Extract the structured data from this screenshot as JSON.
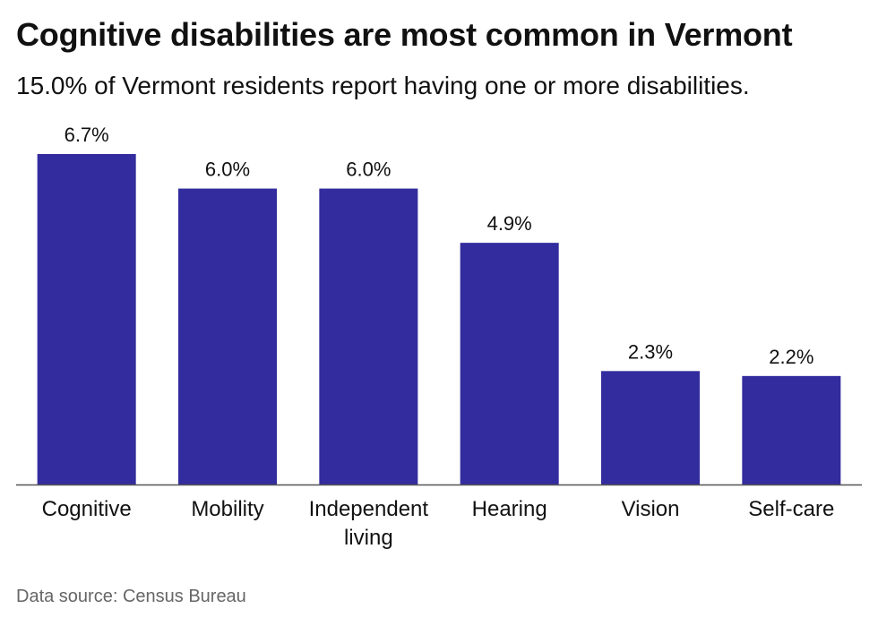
{
  "header": {
    "title": "Cognitive disabilities are most common in Vermont",
    "subtitle": "15.0% of Vermont residents report having one or more disabilities."
  },
  "footer": {
    "source": "Data source: Census Bureau"
  },
  "colors": {
    "bar": "#332c9e",
    "axis": "#555555",
    "text": "#111111"
  },
  "chart_data": {
    "type": "bar",
    "categories": [
      "Cognitive",
      "Mobility",
      "Independent living",
      "Hearing",
      "Vision",
      "Self-care"
    ],
    "category_lines": [
      [
        "Cognitive"
      ],
      [
        "Mobility"
      ],
      [
        "Independent",
        "living"
      ],
      [
        "Hearing"
      ],
      [
        "Vision"
      ],
      [
        "Self-care"
      ]
    ],
    "values": [
      6.7,
      6.0,
      6.0,
      4.9,
      2.3,
      2.2
    ],
    "value_labels": [
      "6.7%",
      "6.0%",
      "6.0%",
      "4.9%",
      "2.3%",
      "2.2%"
    ],
    "ylim": [
      0,
      6.7
    ],
    "grid": false,
    "legend": "none"
  }
}
